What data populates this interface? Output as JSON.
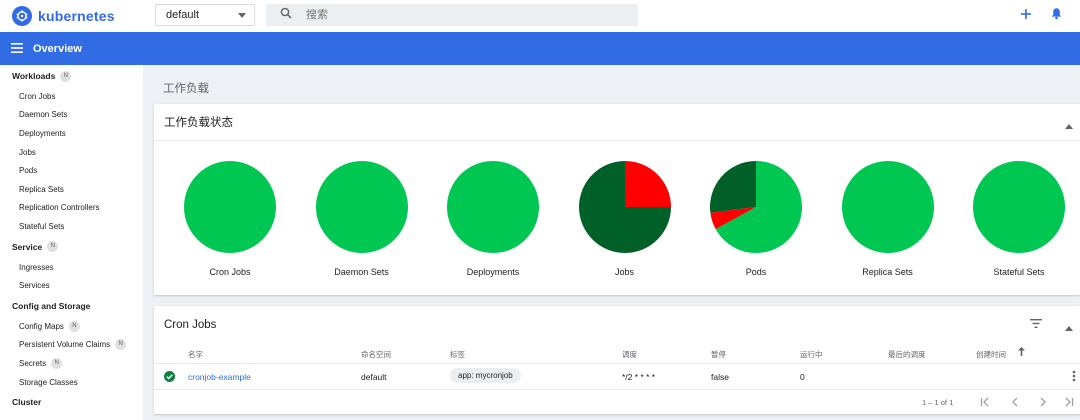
{
  "app": {
    "title": "kubernetes"
  },
  "namespace": {
    "value": "default"
  },
  "search": {
    "placeholder": "搜索"
  },
  "header": {
    "title": "Overview"
  },
  "sidebar": {
    "sections": [
      {
        "title": "Workloads",
        "badge": "N",
        "items": [
          "Cron Jobs",
          "Daemon Sets",
          "Deployments",
          "Jobs",
          "Pods",
          "Replica Sets",
          "Replication Controllers",
          "Stateful Sets"
        ]
      },
      {
        "title": "Service",
        "badge": "N",
        "items": [
          "Ingresses",
          "Services"
        ]
      },
      {
        "title": "Config and Storage",
        "badge": "",
        "items": [
          {
            "label": "Config Maps",
            "badge": "N"
          },
          {
            "label": "Persistent Volume Claims",
            "badge": "N"
          },
          {
            "label": "Secrets",
            "badge": "N"
          },
          {
            "label": "Storage Classes",
            "badge": ""
          }
        ]
      },
      {
        "title": "Cluster",
        "badge": "",
        "items": []
      }
    ]
  },
  "page": {
    "title": "工作负载"
  },
  "status_card": {
    "title": "工作负载状态",
    "colors": {
      "running": "#00c752",
      "succeeded": "#006028",
      "failed": "#ff0000"
    },
    "charts": [
      {
        "label": "Cron Jobs",
        "slices": [
          {
            "state": "running",
            "value": 1
          }
        ]
      },
      {
        "label": "Daemon Sets",
        "slices": [
          {
            "state": "running",
            "value": 1
          }
        ]
      },
      {
        "label": "Deployments",
        "slices": [
          {
            "state": "running",
            "value": 1
          }
        ]
      },
      {
        "label": "Jobs",
        "slices": [
          {
            "state": "failed",
            "value": 25
          },
          {
            "state": "succeeded",
            "value": 75
          }
        ]
      },
      {
        "label": "Pods",
        "slices": [
          {
            "state": "running",
            "value": 67
          },
          {
            "state": "failed",
            "value": 6
          },
          {
            "state": "succeeded",
            "value": 27
          }
        ]
      },
      {
        "label": "Replica Sets",
        "slices": [
          {
            "state": "running",
            "value": 1
          }
        ]
      },
      {
        "label": "Stateful Sets",
        "slices": [
          {
            "state": "running",
            "value": 1
          }
        ]
      }
    ]
  },
  "cron_card": {
    "title": "Cron Jobs",
    "columns": [
      "名字",
      "命名空间",
      "标签",
      "调度",
      "暂停",
      "运行中",
      "最后的调度",
      "创建时间"
    ],
    "rows": [
      {
        "name": "cronjob-example",
        "namespace": "default",
        "label": "app: mycronjob",
        "schedule": "*/2 * * * *",
        "suspend": "false",
        "active": "0",
        "last_schedule": "",
        "created": ""
      }
    ],
    "pagination": "1 – 1 of 1"
  },
  "chart_data": {
    "type": "pie",
    "charts": [
      {
        "title": "Cron Jobs",
        "slices": [
          {
            "name": "running",
            "value": 1
          }
        ]
      },
      {
        "title": "Daemon Sets",
        "slices": [
          {
            "name": "running",
            "value": 1
          }
        ]
      },
      {
        "title": "Deployments",
        "slices": [
          {
            "name": "running",
            "value": 1
          }
        ]
      },
      {
        "title": "Jobs",
        "slices": [
          {
            "name": "failed",
            "value": 25
          },
          {
            "name": "succeeded",
            "value": 75
          }
        ]
      },
      {
        "title": "Pods",
        "slices": [
          {
            "name": "running",
            "value": 67
          },
          {
            "name": "failed",
            "value": 6
          },
          {
            "name": "succeeded",
            "value": 27
          }
        ]
      },
      {
        "title": "Replica Sets",
        "slices": [
          {
            "name": "running",
            "value": 1
          }
        ]
      },
      {
        "title": "Stateful Sets",
        "slices": [
          {
            "name": "running",
            "value": 1
          }
        ]
      }
    ]
  }
}
